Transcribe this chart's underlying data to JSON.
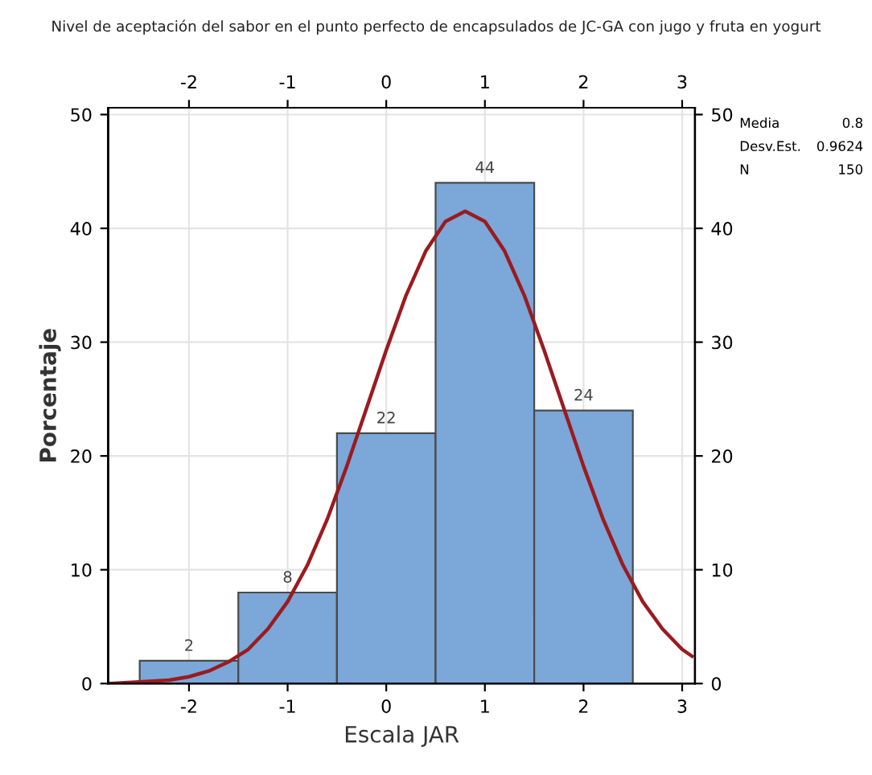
{
  "chart_data": {
    "type": "histogram",
    "title": "Nivel de aceptación del sabor en el punto perfecto de encapsulados de JC-GA con jugo y fruta en yogurt",
    "xlabel": "Escala JAR",
    "ylabel": "Porcentaje",
    "bins": [
      -2.5,
      -1.5,
      -0.5,
      0.5,
      1.5,
      2.5
    ],
    "values": [
      2,
      8,
      22,
      44,
      24
    ],
    "color": "#7ba7d9",
    "value_labels": [
      "2",
      "8",
      "22",
      "44",
      "24"
    ],
    "series": [
      {
        "type": "line",
        "color": "#9b1b1f",
        "x": [
          -2.8,
          -2.4,
          -2.2,
          -2.0,
          -1.8,
          -1.6,
          -1.4,
          -1.2,
          -1.0,
          -0.8,
          -0.6,
          -0.4,
          -0.2,
          0,
          0.2,
          0.4,
          0.6,
          0.8,
          1.0,
          1.2,
          1.4,
          1.6,
          1.8,
          2.0,
          2.2,
          2.4,
          2.6,
          2.8,
          3.0,
          3.1
        ],
        "values": [
          0,
          0.2,
          0.3,
          0.6,
          1.1,
          1.9,
          3.0,
          4.8,
          7.2,
          10.4,
          14.4,
          19.1,
          24.2,
          29.3,
          34.1,
          38.0,
          40.6,
          41.5,
          40.6,
          38.0,
          34.1,
          29.3,
          24.2,
          19.1,
          14.4,
          10.4,
          7.2,
          4.8,
          3.0,
          2.4
        ]
      }
    ],
    "xlim": [
      -2.82,
      3.13
    ],
    "xticks": [
      -2,
      -1,
      0,
      1,
      2,
      3
    ],
    "x2lim": [
      -2.82,
      3.13
    ],
    "x2ticks": [
      -2,
      -1,
      0,
      1,
      2,
      3
    ],
    "ylim": [
      0,
      50.6
    ],
    "yticks": [
      0,
      10,
      20,
      30,
      40,
      50
    ],
    "y2lim": [
      0,
      50.6
    ],
    "y2ticks": [
      0,
      10,
      20,
      30,
      40,
      50
    ],
    "grid": true,
    "marker": "none",
    "line_style": "solid",
    "annotations": [
      "Media",
      "0.8",
      "Desv.Est.",
      "0.9624",
      "N",
      "150"
    ]
  }
}
